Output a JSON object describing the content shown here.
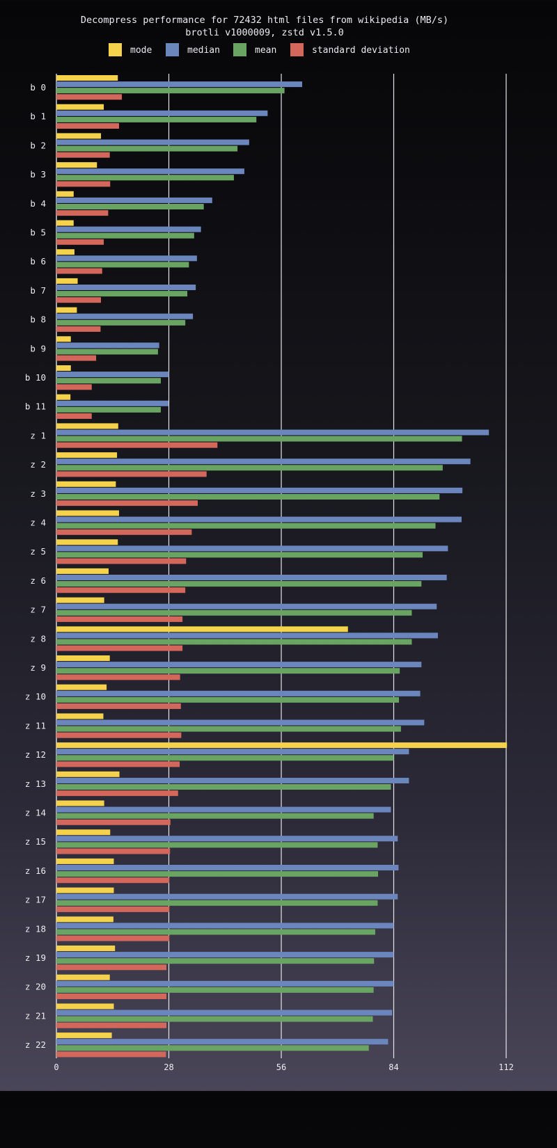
{
  "chart_data": {
    "type": "bar",
    "orientation": "horizontal",
    "title": "Decompress performance for 72432 html files from wikipedia (MB/s)",
    "subtitle": "brotli v1000009, zstd v1.5.0",
    "xlim": [
      0,
      112
    ],
    "xticks": [
      0,
      28,
      56,
      84,
      112
    ],
    "legend_position": "top",
    "categories": [
      "b  0",
      "b  1",
      "b  2",
      "b  3",
      "b  4",
      "b  5",
      "b  6",
      "b  7",
      "b  8",
      "b  9",
      "b 10",
      "b 11",
      "z  1",
      "z  2",
      "z  3",
      "z  4",
      "z  5",
      "z  6",
      "z  7",
      "z  8",
      "z  9",
      "z 10",
      "z 11",
      "z 12",
      "z 13",
      "z 14",
      "z 15",
      "z 16",
      "z 17",
      "z 18",
      "z 19",
      "z 20",
      "z 21",
      "z 22"
    ],
    "series": [
      {
        "name": "mode",
        "color": "#f5d24b",
        "values": [
          15.3,
          11.8,
          11.1,
          10.1,
          4.3,
          4.3,
          4.5,
          5.3,
          5.1,
          3.6,
          3.6,
          3.5,
          15.4,
          15.1,
          14.8,
          15.6,
          15.3,
          13.0,
          11.9,
          72.6,
          13.3,
          12.5,
          11.7,
          112.2,
          15.7,
          11.9,
          13.4,
          14.3,
          14.3,
          14.2,
          14.6,
          13.3,
          14.3,
          13.8
        ]
      },
      {
        "name": "median",
        "color": "#6b86bd",
        "values": [
          61.2,
          52.6,
          48.0,
          46.8,
          38.8,
          36.0,
          35.0,
          34.7,
          34.0,
          25.6,
          28.0,
          27.9,
          107.7,
          103.1,
          101.1,
          100.9,
          97.5,
          97.2,
          94.7,
          95.0,
          90.9,
          90.6,
          91.6,
          87.8,
          87.8,
          83.3,
          85.0,
          85.2,
          85.0,
          84.0,
          84.0,
          84.0,
          83.6,
          82.6
        ]
      },
      {
        "name": "mean",
        "color": "#6aa463",
        "values": [
          56.8,
          49.8,
          45.1,
          44.2,
          36.7,
          34.3,
          33.0,
          32.6,
          32.1,
          25.3,
          26.0,
          26.0,
          101.0,
          96.2,
          95.4,
          94.4,
          91.2,
          90.9,
          88.5,
          88.5,
          85.5,
          85.3,
          85.8,
          84.0,
          83.3,
          79.0,
          80.0,
          80.1,
          80.0,
          79.4,
          79.1,
          79.0,
          78.8,
          77.8
        ]
      },
      {
        "name": "standard deviation",
        "color": "#d3675c",
        "values": [
          16.3,
          15.6,
          13.3,
          13.4,
          12.9,
          11.8,
          11.4,
          11.1,
          11.0,
          9.9,
          8.8,
          8.8,
          40.1,
          37.4,
          35.2,
          33.7,
          32.3,
          32.1,
          31.4,
          31.4,
          30.8,
          31.0,
          31.1,
          30.7,
          30.3,
          28.4,
          28.3,
          28.1,
          28.1,
          28.1,
          27.4,
          27.4,
          27.4,
          27.3
        ]
      }
    ]
  }
}
